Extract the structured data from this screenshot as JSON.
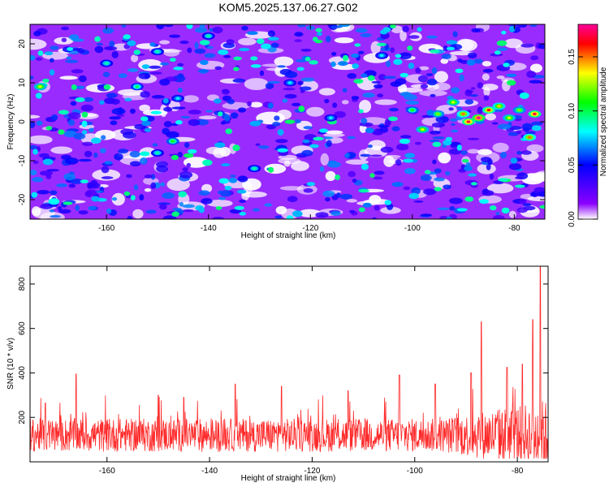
{
  "title": "KOM5.2025.137.06.27.G02",
  "chart_data": [
    {
      "type": "heatmap",
      "title": "KOM5.2025.137.06.27.G02",
      "xlabel": "Height of straight line (km)",
      "ylabel": "Frequency (Hz)",
      "xlim": [
        -175,
        -74
      ],
      "ylim": [
        -25,
        25
      ],
      "x_ticks": [
        "-160",
        "-140",
        "-120",
        "-100",
        "-80"
      ],
      "y_ticks": [
        "-20",
        "-10",
        "0",
        "10",
        "20"
      ],
      "colorbar": {
        "label": "Normalized spectral amplitude",
        "range": [
          0,
          0.18
        ],
        "ticks": [
          "0.00",
          "0.05",
          "0.10",
          "0.15"
        ],
        "colormap": [
          "#ffffff",
          "#8b00ff",
          "#0000ff",
          "#00ffff",
          "#00ff00",
          "#ffff00",
          "#ff0000",
          "#ff0099"
        ]
      },
      "hotspots": [
        {
          "x": -173,
          "y": 9,
          "v": 0.13
        },
        {
          "x": -160,
          "y": 15,
          "v": 0.09
        },
        {
          "x": -154,
          "y": 9,
          "v": 0.1
        },
        {
          "x": -150,
          "y": 18,
          "v": 0.09
        },
        {
          "x": -146,
          "y": 6,
          "v": 0.08
        },
        {
          "x": -140,
          "y": 22,
          "v": 0.09
        },
        {
          "x": -147,
          "y": -5,
          "v": 0.11
        },
        {
          "x": -150,
          "y": -8,
          "v": 0.09
        },
        {
          "x": -131,
          "y": -12,
          "v": 0.09
        },
        {
          "x": -124,
          "y": 10,
          "v": 0.08
        },
        {
          "x": -116,
          "y": 1,
          "v": 0.08
        },
        {
          "x": -106,
          "y": 17,
          "v": 0.08
        },
        {
          "x": -100,
          "y": 3,
          "v": 0.11
        },
        {
          "x": -98,
          "y": -2,
          "v": 0.13
        },
        {
          "x": -95,
          "y": 2,
          "v": 0.12
        },
        {
          "x": -92,
          "y": 5,
          "v": 0.13
        },
        {
          "x": -90,
          "y": 2,
          "v": 0.15
        },
        {
          "x": -89,
          "y": 0,
          "v": 0.17
        },
        {
          "x": -87,
          "y": 1,
          "v": 0.18
        },
        {
          "x": -85,
          "y": 3,
          "v": 0.16
        },
        {
          "x": -83,
          "y": 4,
          "v": 0.14
        },
        {
          "x": -81,
          "y": 1,
          "v": 0.13
        },
        {
          "x": -79,
          "y": 3,
          "v": 0.12
        },
        {
          "x": -77,
          "y": -4,
          "v": 0.15
        },
        {
          "x": -76,
          "y": 2,
          "v": 0.17
        }
      ]
    },
    {
      "type": "line",
      "xlabel": "Height of straight line (km)",
      "ylabel": "SNR (10 * v/v)",
      "xlim": [
        -175,
        -74
      ],
      "ylim": [
        0,
        880
      ],
      "x_ticks": [
        "-160",
        "-140",
        "-120",
        "-100",
        "-80"
      ],
      "y_ticks": [
        "200",
        "400",
        "600",
        "800"
      ],
      "series_color": "#ff2a2a",
      "baseline_level": 120,
      "peaks": [
        {
          "x": -172,
          "y": 265
        },
        {
          "x": -166,
          "y": 395
        },
        {
          "x": -150,
          "y": 300
        },
        {
          "x": -145,
          "y": 290
        },
        {
          "x": -135,
          "y": 350
        },
        {
          "x": -126,
          "y": 340
        },
        {
          "x": -113,
          "y": 320
        },
        {
          "x": -103,
          "y": 390
        },
        {
          "x": -96,
          "y": 350
        },
        {
          "x": -89,
          "y": 400
        },
        {
          "x": -87,
          "y": 630
        },
        {
          "x": -82,
          "y": 425
        },
        {
          "x": -79,
          "y": 440
        },
        {
          "x": -77,
          "y": 640
        },
        {
          "x": -75.5,
          "y": 880
        }
      ]
    }
  ]
}
